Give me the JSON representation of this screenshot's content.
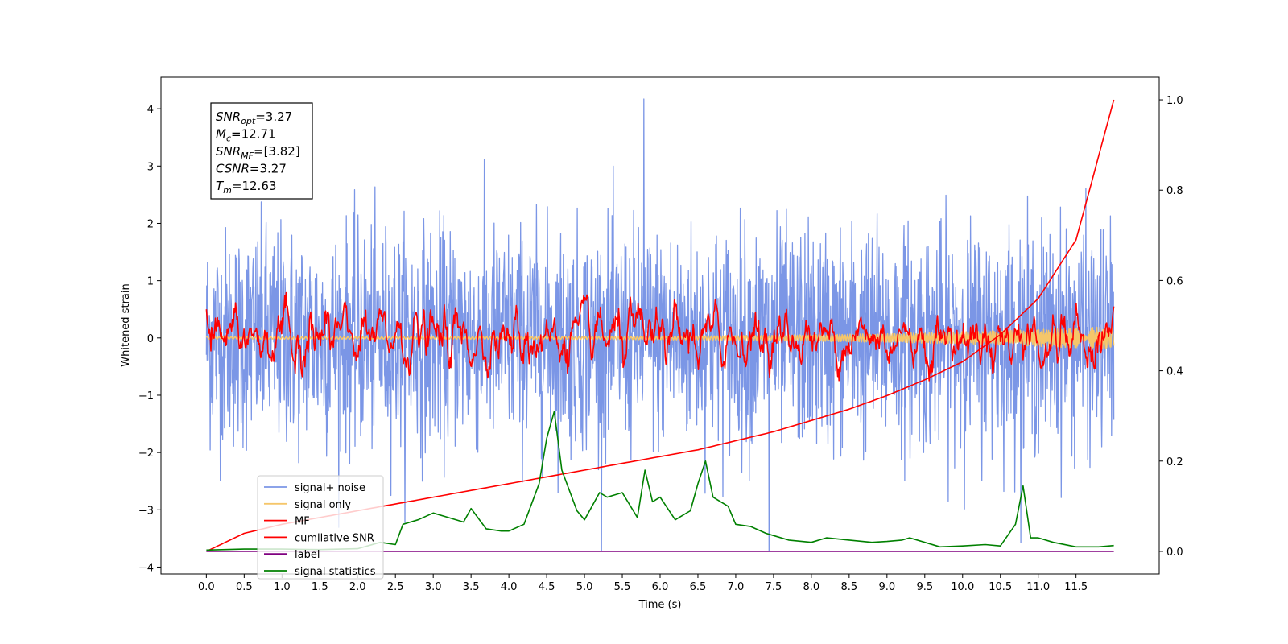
{
  "chart_data": {
    "type": "line",
    "xlabel": "Time (s)",
    "ylabel": "Whitened strain",
    "xlim": [
      -0.6,
      12.6
    ],
    "ylim": [
      -4.12,
      4.55
    ],
    "ylim_right": [
      -0.05,
      1.05
    ],
    "x_ticks": [
      "0.0",
      "0.5",
      "1.0",
      "1.5",
      "2.0",
      "2.5",
      "3.0",
      "3.5",
      "4.0",
      "4.5",
      "5.0",
      "5.5",
      "6.0",
      "6.5",
      "7.0",
      "7.5",
      "8.0",
      "8.5",
      "9.0",
      "9.5",
      "10.0",
      "10.5",
      "11.0",
      "11.5"
    ],
    "y_ticks_left": [
      "4",
      "3",
      "2",
      "1",
      "0",
      "−1",
      "−2",
      "−3",
      "−4"
    ],
    "y_ticks_right": [
      "1.0",
      "0.8",
      "0.6",
      "0.4",
      "0.2",
      "0.0"
    ],
    "grid": false,
    "legend_position": "lower-left",
    "stats": [
      {
        "base": "SNR",
        "sub": "opt",
        "value": "=3.27"
      },
      {
        "base": "M",
        "sub": "c",
        "value": "=12.71"
      },
      {
        "base": "SNR",
        "sub": "MF",
        "value": "=[3.82]"
      },
      {
        "base": "CSNR",
        "sub": "",
        "value": "=3.27"
      },
      {
        "base": "T",
        "sub": "m",
        "value": "=12.63"
      }
    ],
    "series": [
      {
        "name": "signal+ noise",
        "color": "#7b96e6",
        "axis": "left",
        "kind": "noise",
        "x_range": [
          0.0,
          12.0
        ],
        "std": 0.95,
        "max": 4.17,
        "min": -3.72
      },
      {
        "name": "signal only",
        "color": "#f5c66a",
        "axis": "left",
        "kind": "chirp",
        "x_range": [
          0.0,
          12.0
        ],
        "amplitude_end": 0.18
      },
      {
        "name": "MF",
        "color": "#ff0000",
        "axis": "left",
        "kind": "noise-smooth",
        "x_range": [
          0.0,
          12.0
        ],
        "start": 0.5,
        "end": 0.55,
        "std": 0.3
      },
      {
        "name": "cumilative SNR",
        "color": "#ff0000",
        "axis": "right",
        "x": [
          0.0,
          0.5,
          1.0,
          1.5,
          2.0,
          2.5,
          3.0,
          3.5,
          4.0,
          4.5,
          5.0,
          5.5,
          6.0,
          6.5,
          7.0,
          7.5,
          8.0,
          8.5,
          9.0,
          9.5,
          10.0,
          10.5,
          11.0,
          11.5,
          12.0
        ],
        "values": [
          0.0,
          0.04,
          0.06,
          0.075,
          0.09,
          0.105,
          0.12,
          0.135,
          0.15,
          0.165,
          0.18,
          0.195,
          0.21,
          0.225,
          0.245,
          0.265,
          0.29,
          0.315,
          0.345,
          0.38,
          0.42,
          0.48,
          0.56,
          0.69,
          1.0
        ]
      },
      {
        "name": "label",
        "color": "#800080",
        "axis": "right",
        "x": [
          0.0,
          12.0
        ],
        "values": [
          0.0,
          0.0
        ]
      },
      {
        "name": "signal statistics",
        "color": "#008000",
        "axis": "right",
        "x": [
          0.0,
          0.5,
          1.0,
          1.5,
          2.0,
          2.3,
          2.5,
          2.6,
          2.8,
          3.0,
          3.2,
          3.4,
          3.5,
          3.7,
          3.9,
          4.0,
          4.2,
          4.4,
          4.5,
          4.6,
          4.7,
          4.9,
          5.0,
          5.2,
          5.3,
          5.5,
          5.7,
          5.8,
          5.9,
          6.0,
          6.2,
          6.4,
          6.5,
          6.6,
          6.7,
          6.9,
          7.0,
          7.2,
          7.4,
          7.5,
          7.7,
          8.0,
          8.2,
          8.5,
          8.8,
          9.0,
          9.2,
          9.3,
          9.5,
          9.7,
          10.0,
          10.3,
          10.5,
          10.7,
          10.8,
          10.9,
          11.0,
          11.2,
          11.5,
          11.8,
          12.0
        ],
        "values": [
          0.003,
          0.005,
          0.005,
          0.004,
          0.006,
          0.02,
          0.015,
          0.06,
          0.07,
          0.085,
          0.075,
          0.065,
          0.095,
          0.05,
          0.045,
          0.045,
          0.06,
          0.15,
          0.25,
          0.31,
          0.18,
          0.09,
          0.07,
          0.13,
          0.12,
          0.13,
          0.075,
          0.18,
          0.11,
          0.12,
          0.07,
          0.09,
          0.15,
          0.2,
          0.12,
          0.1,
          0.06,
          0.055,
          0.04,
          0.035,
          0.025,
          0.02,
          0.03,
          0.025,
          0.02,
          0.022,
          0.025,
          0.03,
          0.02,
          0.01,
          0.012,
          0.015,
          0.012,
          0.06,
          0.145,
          0.03,
          0.03,
          0.02,
          0.01,
          0.01,
          0.013
        ]
      }
    ]
  }
}
